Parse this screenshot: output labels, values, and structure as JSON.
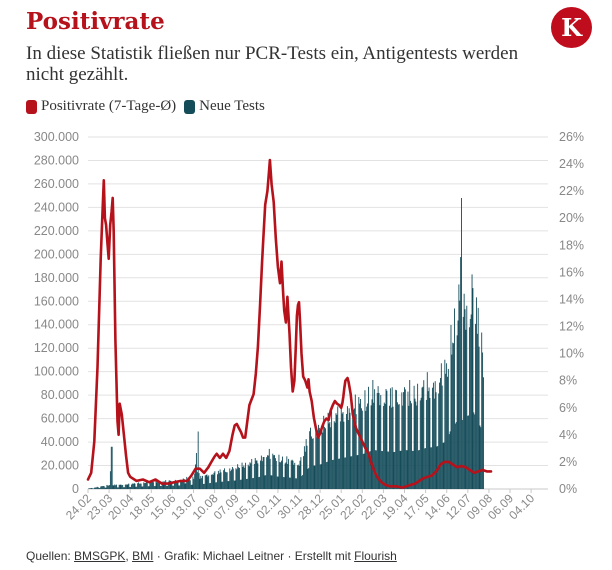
{
  "header": {
    "title": "Positivrate",
    "subtitle": "In diese Statistik fließen nur PCR-Tests ein, Antigentests werden nicht gezählt.",
    "logo_letter": "K"
  },
  "footer": {
    "prefix": "Quellen: ",
    "source1": "BMSGPK",
    "sep1": ", ",
    "source2": "BMI",
    "middle": " · Grafik: Michael Leitner · Erstellt mit ",
    "tool": "Flourish"
  },
  "colors": {
    "positivrate": "#b5121b",
    "tests": "#154c5a",
    "title": "#b5121b",
    "logo_bg": "#c00d1e",
    "grid": "#e2e2e2",
    "axis_text": "#888888"
  },
  "chart_data": {
    "type": "bar+line",
    "legend_position": "top-left",
    "grid": true,
    "series": [
      {
        "name": "Positivrate (7-Tage-Ø)",
        "type": "line",
        "axis": "right",
        "unit": "%"
      },
      {
        "name": "Neue Tests",
        "type": "bar",
        "axis": "left"
      }
    ],
    "left_axis": {
      "ylim": [
        0,
        300000
      ],
      "ticks": [
        "0",
        "20.000",
        "40.000",
        "60.000",
        "80.000",
        "100.000",
        "120.000",
        "140.000",
        "160.000",
        "180.000",
        "200.000",
        "220.000",
        "240.000",
        "260.000",
        "280.000",
        "300.000"
      ]
    },
    "right_axis": {
      "ylim": [
        0,
        26
      ],
      "ticks": [
        "0%",
        "2%",
        "4%",
        "6%",
        "8%",
        "10%",
        "12%",
        "14%",
        "16%",
        "18%",
        "20%",
        "22%",
        "24%",
        "26%"
      ]
    },
    "x_ticks": [
      "24.02",
      "23.03",
      "20.04",
      "18.05",
      "15.06",
      "13.07",
      "10.08",
      "07.09",
      "05.10",
      "02.11",
      "30.11",
      "28.12",
      "25.01",
      "22.02",
      "22.03",
      "19.04",
      "17.05",
      "14.06",
      "12.07",
      "09.08",
      "06.09",
      "04.10"
    ],
    "x_range": [
      0,
      21.8
    ],
    "positivrate_points": [
      [
        0,
        0.7
      ],
      [
        0.15,
        1.2
      ],
      [
        0.3,
        3.5
      ],
      [
        0.45,
        9
      ],
      [
        0.6,
        17
      ],
      [
        0.7,
        21
      ],
      [
        0.75,
        22.8
      ],
      [
        0.8,
        20
      ],
      [
        0.86,
        19.5
      ],
      [
        0.92,
        18.2
      ],
      [
        0.98,
        17
      ],
      [
        1.05,
        19.5
      ],
      [
        1.12,
        20.5
      ],
      [
        1.17,
        21.5
      ],
      [
        1.22,
        19
      ],
      [
        1.3,
        11
      ],
      [
        1.4,
        5
      ],
      [
        1.45,
        4
      ],
      [
        1.5,
        6.3
      ],
      [
        1.6,
        5.5
      ],
      [
        1.7,
        4
      ],
      [
        1.8,
        2.5
      ],
      [
        1.9,
        1.2
      ],
      [
        2.0,
        0.9
      ],
      [
        2.3,
        0.6
      ],
      [
        2.6,
        0.7
      ],
      [
        2.9,
        0.5
      ],
      [
        3.2,
        0.7
      ],
      [
        3.5,
        0.4
      ],
      [
        3.8,
        0.4
      ],
      [
        4.1,
        0.5
      ],
      [
        4.4,
        0.6
      ],
      [
        4.7,
        0.6
      ],
      [
        4.9,
        1.0
      ],
      [
        5.1,
        1.5
      ],
      [
        5.3,
        1.5
      ],
      [
        5.5,
        1.2
      ],
      [
        5.7,
        1.6
      ],
      [
        5.85,
        2.0
      ],
      [
        6.0,
        2.4
      ],
      [
        6.1,
        2.6
      ],
      [
        6.25,
        2.3
      ],
      [
        6.4,
        2.6
      ],
      [
        6.55,
        2.3
      ],
      [
        6.7,
        2.8
      ],
      [
        6.85,
        4
      ],
      [
        6.95,
        4.7
      ],
      [
        7.05,
        4.8
      ],
      [
        7.15,
        4.5
      ],
      [
        7.25,
        4.2
      ],
      [
        7.35,
        3.8
      ],
      [
        7.45,
        3.8
      ],
      [
        7.55,
        5.0
      ],
      [
        7.65,
        6.2
      ],
      [
        7.75,
        6.6
      ],
      [
        7.85,
        7.0
      ],
      [
        7.95,
        8.5
      ],
      [
        8.05,
        10.5
      ],
      [
        8.15,
        13.5
      ],
      [
        8.25,
        16.8
      ],
      [
        8.3,
        18.2
      ],
      [
        8.4,
        21
      ],
      [
        8.5,
        22
      ],
      [
        8.55,
        22.9
      ],
      [
        8.62,
        24.3
      ],
      [
        8.7,
        22.5
      ],
      [
        8.8,
        21.2
      ],
      [
        8.9,
        18.5
      ],
      [
        9.0,
        16.4
      ],
      [
        9.1,
        15.2
      ],
      [
        9.17,
        16.8
      ],
      [
        9.25,
        14.4
      ],
      [
        9.3,
        13.2
      ],
      [
        9.38,
        12.3
      ],
      [
        9.45,
        14.2
      ],
      [
        9.55,
        11.5
      ],
      [
        9.62,
        9
      ],
      [
        9.7,
        7.2
      ],
      [
        9.78,
        8.0
      ],
      [
        9.85,
        10.5
      ],
      [
        9.9,
        12.8
      ],
      [
        9.95,
        13.6
      ],
      [
        10.0,
        13.8
      ],
      [
        10.05,
        12.3
      ],
      [
        10.12,
        10
      ],
      [
        10.2,
        8.3
      ],
      [
        10.3,
        8.0
      ],
      [
        10.4,
        7.5
      ],
      [
        10.45,
        8.1
      ],
      [
        10.5,
        7.2
      ],
      [
        10.6,
        6.5
      ],
      [
        10.7,
        5.3
      ],
      [
        10.8,
        4.5
      ],
      [
        10.9,
        3.8
      ],
      [
        11.0,
        4.1
      ],
      [
        11.1,
        4.6
      ],
      [
        11.2,
        5.0
      ],
      [
        11.3,
        5.2
      ],
      [
        11.4,
        5.1
      ],
      [
        11.5,
        5.8
      ],
      [
        11.6,
        6.2
      ],
      [
        11.7,
        6.5
      ],
      [
        11.8,
        6.3
      ],
      [
        11.9,
        6.2
      ],
      [
        12.0,
        6.0
      ],
      [
        12.05,
        6.3
      ],
      [
        12.1,
        6.8
      ],
      [
        12.15,
        7.5
      ],
      [
        12.2,
        8.0
      ],
      [
        12.3,
        8.2
      ],
      [
        12.35,
        7.9
      ],
      [
        12.45,
        7.0
      ],
      [
        12.55,
        5.5
      ],
      [
        12.7,
        4.5
      ],
      [
        12.85,
        4.0
      ],
      [
        13.0,
        3.5
      ],
      [
        13.15,
        3.0
      ],
      [
        13.3,
        2.6
      ],
      [
        13.45,
        1.8
      ],
      [
        13.6,
        1.2
      ],
      [
        13.75,
        0.8
      ],
      [
        13.9,
        0.5
      ],
      [
        14.1,
        0.3
      ],
      [
        14.3,
        0.2
      ],
      [
        14.6,
        0.2
      ],
      [
        14.9,
        0.1
      ],
      [
        15.1,
        0.2
      ],
      [
        15.3,
        0.3
      ],
      [
        15.5,
        0.4
      ],
      [
        15.7,
        0.6
      ],
      [
        15.9,
        0.8
      ],
      [
        16.1,
        0.9
      ],
      [
        16.3,
        1.0
      ],
      [
        16.5,
        1.3
      ],
      [
        16.7,
        1.8
      ],
      [
        16.9,
        2.0
      ],
      [
        17.1,
        2.0
      ],
      [
        17.3,
        1.8
      ],
      [
        17.5,
        1.6
      ],
      [
        17.7,
        1.7
      ],
      [
        17.9,
        1.6
      ],
      [
        18.1,
        1.4
      ],
      [
        18.3,
        1.2
      ],
      [
        18.5,
        1.3
      ],
      [
        18.7,
        1.4
      ],
      [
        18.9,
        1.3
      ],
      [
        19.1,
        1.3
      ]
    ],
    "tests_envelope": [
      [
        0,
        500
      ],
      [
        0.3,
        1500
      ],
      [
        0.6,
        2500
      ],
      [
        1.0,
        4000
      ],
      [
        1.1,
        36000
      ],
      [
        1.15,
        4000
      ],
      [
        1.5,
        4000
      ],
      [
        2,
        5000
      ],
      [
        3,
        7000
      ],
      [
        4,
        8000
      ],
      [
        4.5,
        9000
      ],
      [
        4.6,
        15000
      ],
      [
        4.7,
        9000
      ],
      [
        5.0,
        11000
      ],
      [
        5.2,
        49000
      ],
      [
        5.25,
        11000
      ],
      [
        6,
        16000
      ],
      [
        7,
        21000
      ],
      [
        8,
        28000
      ],
      [
        8.5,
        35000
      ],
      [
        9,
        30000
      ],
      [
        9.5,
        28000
      ],
      [
        10,
        25000
      ],
      [
        10.5,
        55000
      ],
      [
        11,
        60000
      ],
      [
        11.5,
        70000
      ],
      [
        12,
        75000
      ],
      [
        12.5,
        80000
      ],
      [
        13,
        85000
      ],
      [
        13.5,
        95000
      ],
      [
        14,
        92000
      ],
      [
        14.5,
        90000
      ],
      [
        15,
        95000
      ],
      [
        15.5,
        92000
      ],
      [
        16,
        100000
      ],
      [
        16.5,
        103000
      ],
      [
        17,
        118000
      ],
      [
        17.2,
        150000
      ],
      [
        17.4,
        160000
      ],
      [
        17.55,
        175000
      ],
      [
        17.68,
        248000
      ],
      [
        17.72,
        168000
      ],
      [
        17.85,
        180000
      ],
      [
        18.0,
        178000
      ],
      [
        18.2,
        194000
      ],
      [
        18.4,
        170000
      ],
      [
        18.6,
        150000
      ],
      [
        18.75,
        110000
      ]
    ]
  }
}
